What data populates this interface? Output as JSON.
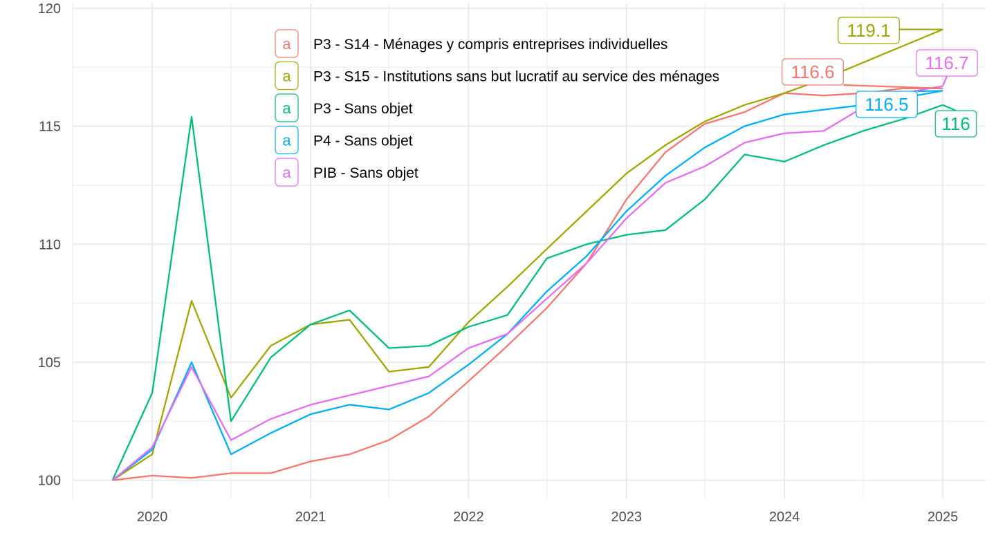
{
  "chart_data": {
    "type": "line",
    "title": "",
    "xlabel": "",
    "ylabel": "",
    "x": [
      "2019-10-01",
      "2020-01-01",
      "2020-04-01",
      "2020-07-01",
      "2020-10-01",
      "2021-01-01",
      "2021-04-01",
      "2021-07-01",
      "2021-10-01",
      "2022-01-01",
      "2022-04-01",
      "2022-07-01",
      "2022-10-01",
      "2023-01-01",
      "2023-04-01",
      "2023-07-01",
      "2023-10-01",
      "2024-01-01",
      "2024-04-01",
      "2024-07-01",
      "2024-10-01",
      "2025-01-01"
    ],
    "xlim": [
      "2019-07-01",
      "2025-04-10"
    ],
    "ylim": [
      99.2,
      120.2
    ],
    "x_ticks": [
      "2020",
      "2021",
      "2022",
      "2023",
      "2024",
      "2025"
    ],
    "y_ticks": [
      "100",
      "105",
      "110",
      "115",
      "120"
    ],
    "grid": true,
    "legend": {
      "position": "inside-top",
      "key_glyph": "a"
    },
    "series": [
      {
        "name": "P3 - S14 - Ménages y compris entreprises individuelles",
        "color": "#F8766D",
        "end_label": "116.6",
        "values": [
          100.0,
          100.2,
          100.1,
          100.3,
          100.3,
          100.8,
          101.1,
          101.7,
          102.7,
          104.2,
          105.7,
          107.3,
          109.2,
          111.9,
          113.9,
          115.1,
          115.6,
          116.4,
          116.3,
          116.4,
          116.6,
          116.6
        ]
      },
      {
        "name": "P3 - S15 - Institutions sans but lucratif au service des ménages",
        "color": "#A3A500",
        "end_label": "119.1",
        "values": [
          100.0,
          101.1,
          107.6,
          103.5,
          105.7,
          106.6,
          106.8,
          104.6,
          104.8,
          106.7,
          108.2,
          109.8,
          111.4,
          113.0,
          114.2,
          115.2,
          115.9,
          116.4,
          117.0,
          117.7,
          118.4,
          119.1
        ]
      },
      {
        "name": "P3 - Sans objet",
        "color": "#00BF7D",
        "end_label": "116",
        "values": [
          100.0,
          103.7,
          115.4,
          102.5,
          105.2,
          106.6,
          107.2,
          105.6,
          105.7,
          106.5,
          107.0,
          109.4,
          110.0,
          110.4,
          110.6,
          111.9,
          113.8,
          113.5,
          114.2,
          114.8,
          115.3,
          115.9
        ]
      },
      {
        "name": "P4 - Sans objet",
        "color": "#00B0F6",
        "end_label": "116.5",
        "values": [
          100.0,
          101.3,
          105.0,
          101.1,
          102.0,
          102.8,
          103.2,
          103.0,
          103.7,
          104.9,
          106.2,
          108.0,
          109.5,
          111.4,
          112.9,
          114.1,
          115.0,
          115.5,
          115.7,
          115.9,
          116.2,
          116.5
        ]
      },
      {
        "name": "PIB - Sans objet",
        "color": "#E76BF3",
        "end_label": "116.7",
        "values": [
          100.0,
          101.4,
          104.8,
          101.7,
          102.6,
          103.2,
          103.6,
          104.0,
          104.4,
          105.6,
          106.2,
          107.7,
          109.2,
          111.1,
          112.6,
          113.3,
          114.3,
          114.7,
          114.8,
          115.8,
          116.4,
          116.7
        ]
      }
    ]
  }
}
